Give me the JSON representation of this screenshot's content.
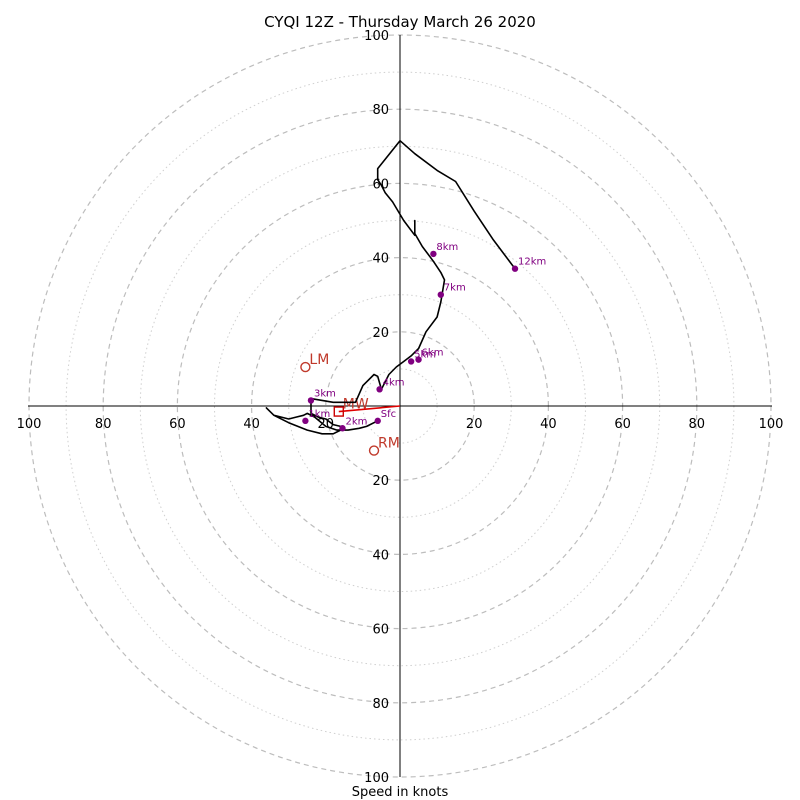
{
  "chart_data": {
    "type": "hodograph",
    "title": "CYQI 12Z - Thursday March 26 2020",
    "xlabel": "Speed in knots",
    "range": [
      -100,
      100
    ],
    "rings_major": [
      20,
      40,
      60,
      80,
      100
    ],
    "rings_minor": [
      10,
      30,
      50,
      70,
      90
    ],
    "tick_labels": {
      "left": [
        "100",
        "80",
        "60",
        "40",
        "20"
      ],
      "right": [
        "20",
        "40",
        "60",
        "80",
        "100"
      ],
      "up": [
        "20",
        "40",
        "60",
        "80",
        "100"
      ],
      "down": [
        "20",
        "40",
        "60",
        "80",
        "100"
      ]
    },
    "tick_values": [
      20,
      40,
      60,
      80,
      100
    ],
    "hodograph_trace": [
      [
        -6,
        -4
      ],
      [
        -9,
        -5.5
      ],
      [
        -11,
        -6
      ],
      [
        -14,
        -6.5
      ],
      [
        -17,
        -6.5
      ],
      [
        -20,
        -5.5
      ],
      [
        -23,
        -3
      ],
      [
        -25,
        -2
      ],
      [
        -26,
        -2.5
      ],
      [
        -28,
        -3
      ],
      [
        -30,
        -3.5
      ],
      [
        -32,
        -3
      ],
      [
        -34,
        -2.5
      ],
      [
        -36,
        -0.5
      ],
      [
        -34,
        -2.5
      ],
      [
        -30,
        -4.5
      ],
      [
        -25,
        -6.5
      ],
      [
        -21,
        -7.5
      ],
      [
        -18,
        -7.5
      ],
      [
        -16,
        -6.5
      ],
      [
        -16,
        -5.5
      ],
      [
        -18,
        -5
      ],
      [
        -20,
        -3.5
      ],
      [
        -22,
        -3
      ],
      [
        -24,
        -2
      ],
      [
        -24,
        2
      ],
      [
        -21,
        1.5
      ],
      [
        -18,
        1
      ],
      [
        -15,
        1
      ],
      [
        -12,
        1
      ],
      [
        -10,
        5.5
      ],
      [
        -7,
        8.5
      ],
      [
        -6,
        8
      ],
      [
        -5,
        4.5
      ],
      [
        -3,
        8.5
      ],
      [
        -1,
        10.5
      ],
      [
        1,
        12
      ],
      [
        3,
        13.5
      ],
      [
        5,
        15.5
      ],
      [
        7,
        20
      ],
      [
        10,
        24
      ],
      [
        11,
        28
      ],
      [
        12,
        34
      ],
      [
        11,
        36
      ],
      [
        9,
        39
      ],
      [
        6,
        43
      ],
      [
        4,
        46.5
      ],
      [
        4,
        50
      ],
      [
        4,
        46
      ],
      [
        1,
        50
      ],
      [
        -2,
        55
      ],
      [
        -4,
        57.5
      ],
      [
        -5,
        59.5
      ],
      [
        -6,
        61
      ],
      [
        -6,
        64
      ],
      [
        -4,
        66.5
      ],
      [
        -2,
        69
      ],
      [
        0,
        71.5
      ],
      [
        4,
        68
      ],
      [
        10,
        63.5
      ],
      [
        15,
        60.5
      ],
      [
        20,
        52.5
      ],
      [
        25,
        45
      ],
      [
        31,
        37
      ]
    ],
    "hodograph_points": [
      {
        "label": "Sfc",
        "u": -6,
        "v": -4
      },
      {
        "label": "1km",
        "u": -25.5,
        "v": -4
      },
      {
        "label": "2km",
        "u": -15.5,
        "v": -6
      },
      {
        "label": "3km",
        "u": -24,
        "v": 1.5
      },
      {
        "label": "4km",
        "u": -5.5,
        "v": 4.5
      },
      {
        "label": "5km",
        "u": 3,
        "v": 12
      },
      {
        "label": "6km",
        "u": 5,
        "v": 12.5
      },
      {
        "label": "7km",
        "u": 11,
        "v": 30
      },
      {
        "label": "8km",
        "u": 9,
        "v": 41
      },
      {
        "label": "12km",
        "u": 31,
        "v": 37
      }
    ],
    "storm_motions": [
      {
        "label": "LM",
        "u": -25.5,
        "v": 10.5
      },
      {
        "label": "RM",
        "u": -7,
        "v": -12
      }
    ],
    "mean_wind": {
      "label": "MW",
      "u": -16.5,
      "v": -1.5
    },
    "mean_wind_arrow_end": {
      "u": 0,
      "v": 0
    },
    "colors": {
      "trace": "#000000",
      "points": "#800080",
      "storm_motion": "#c0392b",
      "mean_wind": "#cc0000",
      "rings": "#bdbdbd"
    }
  }
}
